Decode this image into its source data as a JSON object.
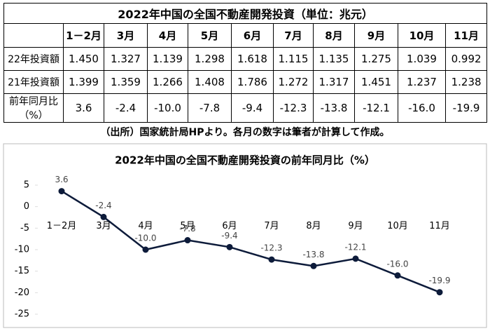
{
  "table": {
    "title": "2022年中国の全国不動産開発投資（単位：兆元）",
    "header": [
      "1－2月",
      "3月",
      "4月",
      "5月",
      "6月",
      "7月",
      "8月",
      "9月",
      "10月",
      "11月"
    ],
    "rows": [
      {
        "label": "22年投資額",
        "cells": [
          "1.450",
          "1.327",
          "1.139",
          "1.298",
          "1.618",
          "1.115",
          "1.135",
          "1.275",
          "1.039",
          "0.992"
        ]
      },
      {
        "label": "21年投資額",
        "cells": [
          "1.399",
          "1.359",
          "1.266",
          "1.408",
          "1.786",
          "1.272",
          "1.317",
          "1.451",
          "1.237",
          "1.238"
        ]
      },
      {
        "label": "前年同月比（%）",
        "cells": [
          "3.6",
          "-2.4",
          "-10.0",
          "-7.8",
          "-9.4",
          "-12.3",
          "-13.8",
          "-12.1",
          "-16.0",
          "-19.9"
        ]
      }
    ],
    "source": "（出所）国家統計局HPより。各月の数字は筆者が計算して作成。"
  },
  "chart_data": {
    "type": "line",
    "title": "2022年中国の全国不動産開発投資の前年同月比（%）",
    "categories": [
      "1－2月",
      "3月",
      "4月",
      "5月",
      "6月",
      "7月",
      "8月",
      "9月",
      "10月",
      "11月"
    ],
    "values": [
      3.6,
      -2.4,
      -10.0,
      -7.8,
      -9.4,
      -12.3,
      -13.8,
      -12.1,
      -16.0,
      -19.9
    ],
    "value_labels": [
      "3.6",
      "-2.4",
      "-10.0",
      "-7.8",
      "-9.4",
      "-12.3",
      "-13.8",
      "-12.1",
      "-16.0",
      "-19.9"
    ],
    "color": "#0d1b3a",
    "ylim": [
      -25,
      5
    ],
    "yticks": [
      5,
      0,
      -5,
      -10,
      -15,
      -20,
      -25
    ]
  }
}
